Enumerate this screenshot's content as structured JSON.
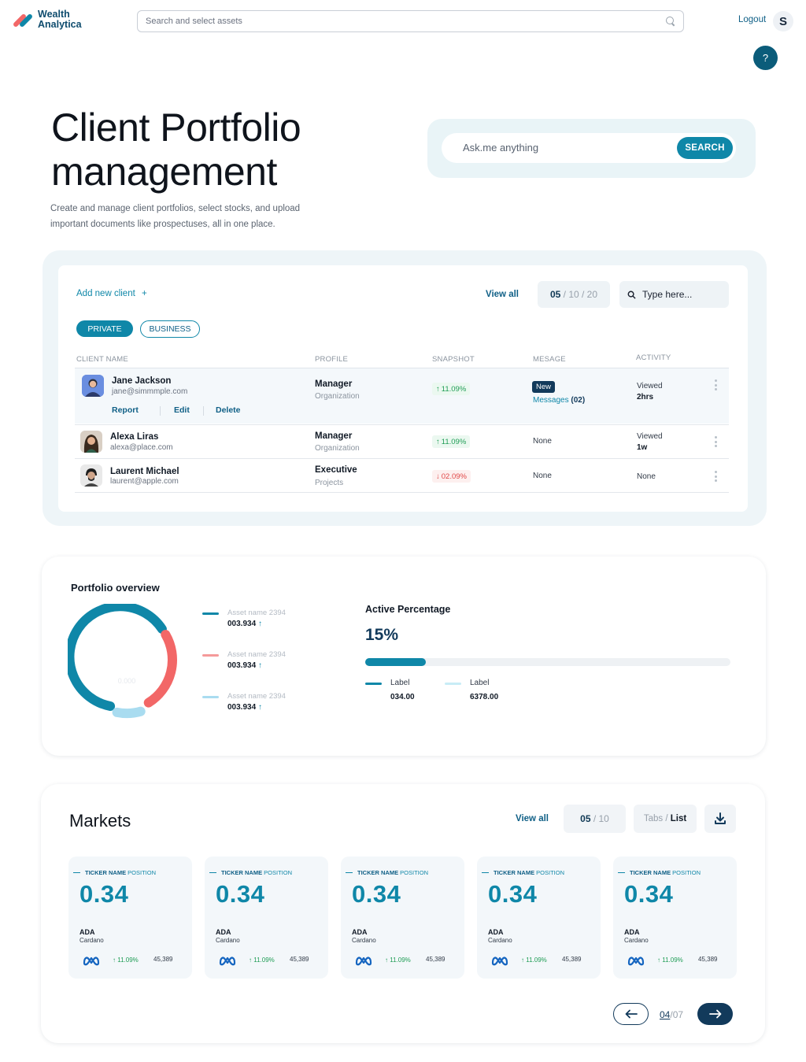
{
  "app": {
    "brand_line1": "Wealth",
    "brand_line2": "Analytica",
    "search_placeholder": "Search and select assets",
    "logout_label": "Logout",
    "user_initial": "S",
    "help_label": "?"
  },
  "hero": {
    "title_line1": "Client Portfolio",
    "title_line2": "management",
    "description": "Create and manage client portfolios, select stocks, and upload important documents like prospectuses, all in one place.",
    "ask_placeholder": "Ask.me anything",
    "ask_button": "SEARCH"
  },
  "clients": {
    "add_label": "Add new client",
    "add_icon": "+",
    "view_all": "View all",
    "pager_current": "05",
    "pager_rest": "/ 10 / 20",
    "filter_placeholder": "Type here...",
    "tabs": [
      "PRIVATE",
      "BUSINESS"
    ],
    "columns": [
      "CLIENT NAME",
      "PROFILE",
      "SNAPSHOT",
      "MESAGE",
      "ACTIVITY"
    ],
    "row_actions": [
      "Report",
      "Edit",
      "Delete"
    ],
    "rows": [
      {
        "name": "Jane Jackson",
        "email": "jane@simmmple.com",
        "profile": "Manager",
        "profile_sub": "Organization",
        "snapshot": "11.09%",
        "snapshot_dir": "up",
        "message_badge": "New",
        "message_link_text": "Messages",
        "message_count": "(02)",
        "activity_line1": "Viewed",
        "activity_line2": "2hrs"
      },
      {
        "name": "Alexa Liras",
        "email": "alexa@place.com",
        "profile": "Manager",
        "profile_sub": "Organization",
        "snapshot": "11.09%",
        "snapshot_dir": "up",
        "message": "None",
        "activity_line1": "Viewed",
        "activity_line2": "1w"
      },
      {
        "name": "Laurent Michael",
        "email": "laurent@apple.com",
        "profile": "Executive",
        "profile_sub": "Projects",
        "snapshot": "02.09%",
        "snapshot_dir": "down",
        "message": "None",
        "activity_line1": "None"
      }
    ]
  },
  "portfolio": {
    "title": "Portfolio overview",
    "donut_center": "0.000",
    "segments": [
      {
        "name": "Asset name 2394",
        "value": "003.934",
        "color": "#0f87a8"
      },
      {
        "name": "Asset name 2394",
        "value": "003.934",
        "color": "#f26767"
      },
      {
        "name": "Asset name 2394",
        "value": "003.934",
        "color": "#a9dcf0"
      }
    ],
    "active_title": "Active Percentage",
    "active_percent": "15%",
    "active_fraction": 0.15,
    "labels": [
      {
        "label": "Label",
        "value": "034.00",
        "color": "#0f87a8"
      },
      {
        "label": "Label",
        "value": "6378.00",
        "color": "#c8ecf6"
      }
    ]
  },
  "markets": {
    "title": "Markets",
    "view_all": "View all",
    "pager_current": "05",
    "pager_rest": "/ 10",
    "tabs_label": "Tabs",
    "list_label": "List",
    "nav_current": "04",
    "nav_total": "/07",
    "cards": [
      {
        "head_bold": "TICKER NAME",
        "head_rest": " POSITION",
        "value": "0.34",
        "ticker": "ADA",
        "name": "Cardano",
        "change": "11.09%",
        "volume": "45,389",
        "icon": "meta-icon"
      },
      {
        "head_bold": "TICKER NAME",
        "head_rest": " POSITION",
        "value": "0.34",
        "ticker": "ADA",
        "name": "Cardano",
        "change": "11.09%",
        "volume": "45,389",
        "icon": "meta-icon"
      },
      {
        "head_bold": "TICKER NAME",
        "head_rest": " POSITION",
        "value": "0.34",
        "ticker": "ADA",
        "name": "Cardano",
        "change": "11.09%",
        "volume": "45,389",
        "icon": "meta-icon"
      },
      {
        "head_bold": "TICKER NAME",
        "head_rest": " POSITION",
        "value": "0.34",
        "ticker": "ADA",
        "name": "Cardano",
        "change": "11.09%",
        "volume": "45,389",
        "icon": "meta-icon"
      },
      {
        "head_bold": "TICKER NAME",
        "head_rest": " POSITION",
        "value": "0.34",
        "ticker": "ADA",
        "name": "Cardano",
        "change": "11.09%",
        "volume": "45,389",
        "icon": "meta-icon"
      }
    ]
  },
  "colors": {
    "accent": "#0f87a8",
    "navy": "#123a5b",
    "up": "#1f9d55",
    "down": "#e04848"
  }
}
